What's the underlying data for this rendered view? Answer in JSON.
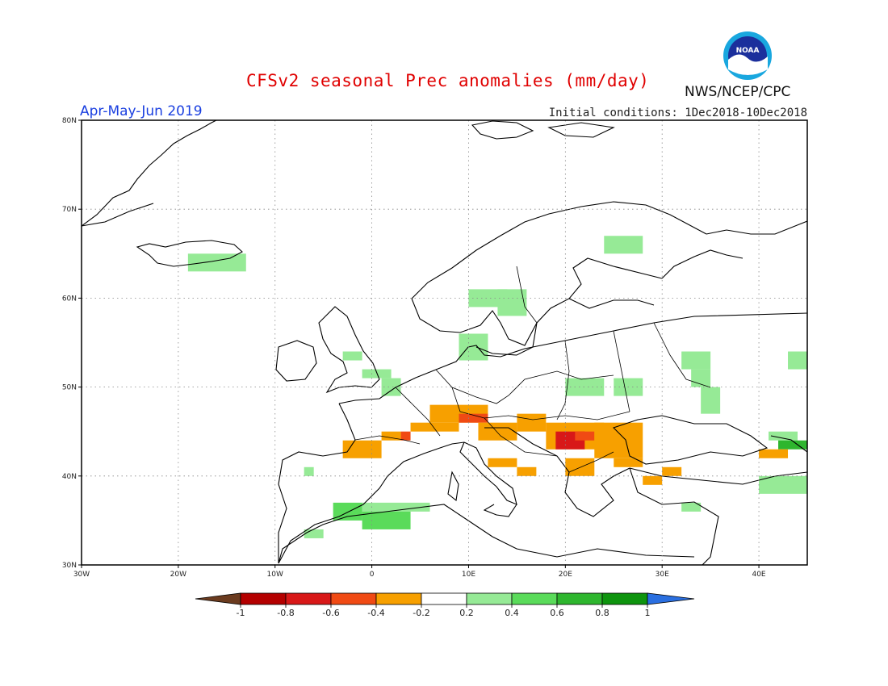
{
  "header": {
    "title": "CFSv2 seasonal Prec anomalies (mm/day)",
    "period": "Apr-May-Jun 2019",
    "initial_conditions": "Initial conditions: 1Dec2018-10Dec2018",
    "agency": "NWS/NCEP/CPC",
    "logo_text": "NOAA"
  },
  "map": {
    "lon_labels": [
      "30W",
      "20W",
      "10W",
      "0",
      "10E",
      "20E",
      "30E",
      "40E"
    ],
    "lat_labels": [
      "30N",
      "40N",
      "50N",
      "60N",
      "70N",
      "80N"
    ],
    "lon_range": [
      -30,
      45
    ],
    "lat_range": [
      30,
      80
    ]
  },
  "colorbar": {
    "labels": [
      "-1",
      "-0.8",
      "-0.6",
      "-0.4",
      "-0.2",
      "0.2",
      "0.4",
      "0.6",
      "0.8",
      "1"
    ],
    "colors": [
      "#6b3b1f",
      "#b40000",
      "#d81818",
      "#f04a14",
      "#f7a000",
      "#ffffff",
      "#96ea96",
      "#5adb5a",
      "#2eb62e",
      "#0e940e",
      "#2a6fe0"
    ]
  },
  "colors": {
    "pos_light": "#96ea96",
    "pos_mid": "#5adb5a",
    "pos_dark": "#2eb62e",
    "neg_light": "#f7a000",
    "neg_mid": "#f04a14",
    "neg_dark": "#d81818"
  }
}
